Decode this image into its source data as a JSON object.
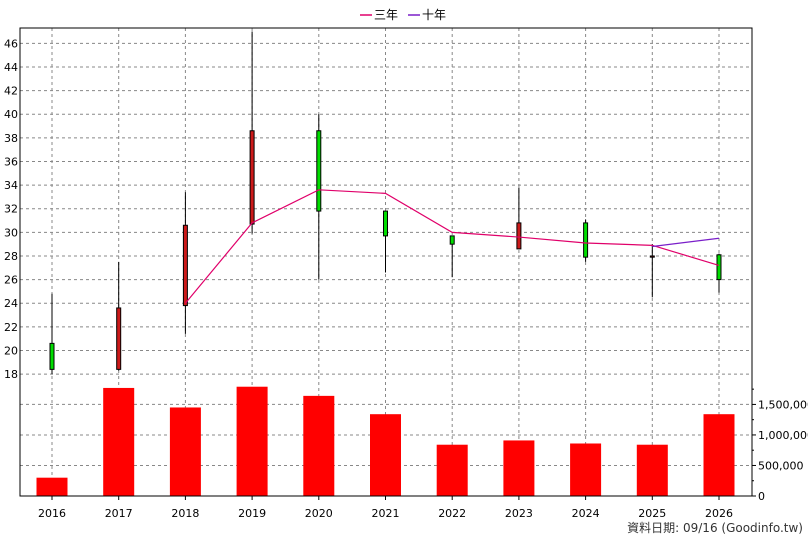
{
  "footer": "資料日期: 09/16  (Goodinfo.tw)",
  "legend": {
    "items": [
      {
        "label": "三年",
        "color": "#e0006a"
      },
      {
        "label": "十年",
        "color": "#7a1fc9"
      }
    ]
  },
  "colors": {
    "up": "#cc1a1a",
    "down": "#00dd00",
    "volume": "#ff0000",
    "grid": "#888888"
  },
  "chart_data": {
    "type": "candlestick_with_volume_bars",
    "categories": [
      "2016",
      "2017",
      "2018",
      "2019",
      "2020",
      "2021",
      "2022",
      "2023",
      "2024",
      "2025",
      "2026"
    ],
    "price_axis": {
      "ylim": [
        17.5,
        47.3
      ],
      "ticks": [
        "18",
        "20",
        "22",
        "24",
        "26",
        "28",
        "30",
        "32",
        "34",
        "36",
        "38",
        "40",
        "42",
        "44",
        "46"
      ]
    },
    "volume_axis": {
      "ylim": [
        0,
        1900000
      ],
      "ticks": [
        "0",
        "500,000",
        "1,000,000",
        "1,500,000"
      ]
    },
    "candles": [
      {
        "year": "2016",
        "open": 18.4,
        "high": 24.8,
        "low": 18.0,
        "close": 20.6,
        "direction": "down"
      },
      {
        "year": "2017",
        "open": 18.4,
        "high": 27.5,
        "low": 18.3,
        "close": 23.6,
        "direction": "up"
      },
      {
        "year": "2018",
        "open": 23.8,
        "high": 33.4,
        "low": 21.4,
        "close": 30.6,
        "direction": "up"
      },
      {
        "year": "2019",
        "open": 30.7,
        "high": 47.0,
        "low": 29.9,
        "close": 38.6,
        "direction": "up"
      },
      {
        "year": "2020",
        "open": 38.6,
        "high": 40.0,
        "low": 26.0,
        "close": 31.8,
        "direction": "down"
      },
      {
        "year": "2021",
        "open": 31.8,
        "high": 31.8,
        "low": 26.6,
        "close": 29.7,
        "direction": "down"
      },
      {
        "year": "2022",
        "open": 29.7,
        "high": 29.7,
        "low": 26.2,
        "close": 29.0,
        "direction": "down"
      },
      {
        "year": "2023",
        "open": 28.6,
        "high": 33.8,
        "low": 28.6,
        "close": 30.8,
        "direction": "up"
      },
      {
        "year": "2024",
        "open": 30.8,
        "high": 31.1,
        "low": 27.5,
        "close": 27.9,
        "direction": "down"
      },
      {
        "year": "2025",
        "open": 27.9,
        "high": 29.0,
        "low": 24.5,
        "close": 28.0,
        "direction": "up"
      },
      {
        "year": "2026",
        "open": 28.1,
        "high": 28.2,
        "low": 24.9,
        "close": 26.0,
        "direction": "down"
      }
    ],
    "series": [
      {
        "name": "三年",
        "x": [
          "2018",
          "2019",
          "2020",
          "2021",
          "2022",
          "2023",
          "2024",
          "2025",
          "2026"
        ],
        "values": [
          24.0,
          30.8,
          33.6,
          33.3,
          30.0,
          29.6,
          29.1,
          28.9,
          27.2
        ]
      },
      {
        "name": "十年",
        "x": [
          "2025",
          "2026"
        ],
        "values": [
          28.8,
          29.5
        ]
      }
    ],
    "volume": [
      300000,
      1770000,
      1450000,
      1790000,
      1640000,
      1340000,
      840000,
      910000,
      860000,
      840000,
      1340000
    ],
    "grid": true,
    "legend_position": "top"
  }
}
